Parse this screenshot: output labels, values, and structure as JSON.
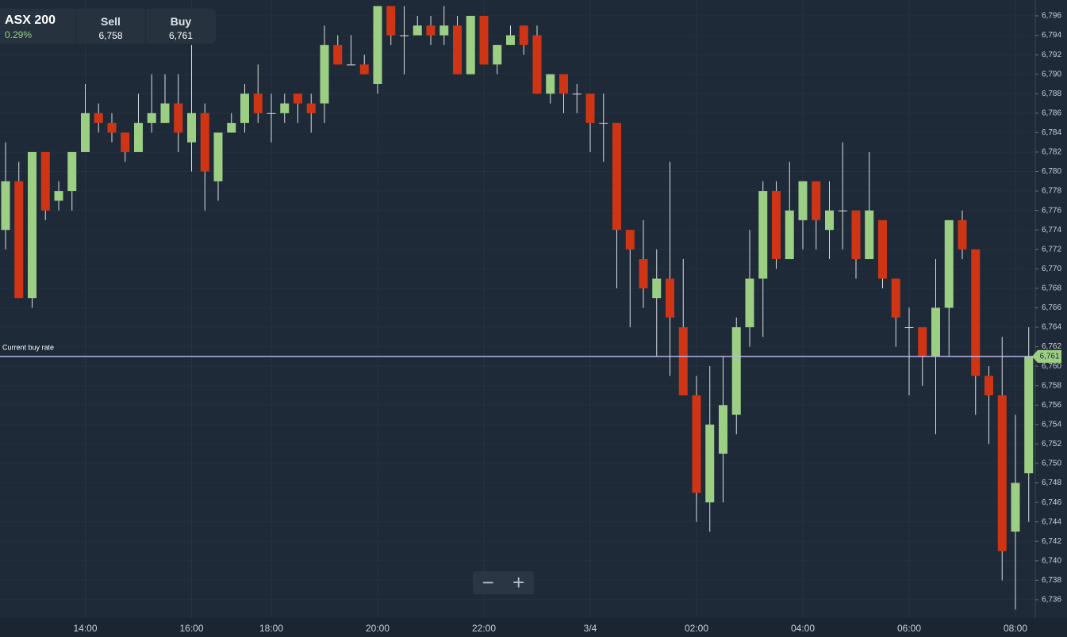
{
  "header": {
    "instrument": "ASX 200",
    "change": "0.29%",
    "sell_label": "Sell",
    "sell": "6,758",
    "buy_label": "Buy",
    "buy": "6,761"
  },
  "zoom": {
    "out": "−",
    "in": "+"
  },
  "chart_data": {
    "type": "candlestick",
    "categories": [
      null,
      null,
      null,
      null,
      null,
      null,
      "14:00",
      null,
      null,
      null,
      null,
      null,
      null,
      null,
      "16:00",
      null,
      null,
      null,
      null,
      null,
      "18:00",
      null,
      null,
      null,
      null,
      null,
      null,
      null,
      "20:00",
      null,
      null,
      null,
      null,
      null,
      null,
      null,
      "22:00",
      null,
      null,
      null,
      null,
      null,
      null,
      null,
      "3/4",
      null,
      null,
      null,
      null,
      null,
      null,
      null,
      "02:00",
      null,
      null,
      null,
      null,
      null,
      null,
      null,
      "04:00",
      null,
      null,
      null,
      null,
      null,
      null,
      null,
      "06:00",
      null,
      null,
      null,
      null,
      null,
      null,
      null,
      "08:00",
      null
    ],
    "open": [
      6774,
      6779,
      6767,
      6782,
      6777,
      6778,
      6782,
      6786,
      6785,
      6784,
      6782,
      6785,
      6785,
      6787,
      6783,
      6786,
      6779,
      6784,
      6785,
      6788,
      6786,
      6786,
      6788,
      6787,
      6787,
      6793,
      6791,
      6791,
      6789,
      6797,
      6794,
      6794,
      6795,
      6794,
      6795,
      6790,
      6796,
      6791,
      6793,
      6795,
      6794,
      6788,
      6790,
      6788,
      6788,
      6785,
      6785,
      6774,
      6771,
      6767,
      6769,
      6764,
      6757,
      6746,
      6751,
      6755,
      6764,
      6769,
      6778,
      6771,
      6775,
      6779,
      6774,
      6776,
      6776,
      6771,
      6775,
      6769,
      6764,
      6764,
      6761,
      6766,
      6775,
      6772,
      6759,
      6757,
      6743,
      6749
    ],
    "high": [
      6783,
      6781,
      6782,
      6782,
      6779,
      6782,
      6789,
      6787,
      6786,
      6784,
      6788,
      6790,
      6790,
      6790,
      6793,
      6787,
      6784,
      6786,
      6789,
      6791,
      6788,
      6788,
      6788,
      6788,
      6795,
      6794,
      6794,
      6792,
      6797,
      6797,
      6797,
      6796,
      6796,
      6797,
      6796,
      6796,
      6796,
      6793,
      6795,
      6795,
      6795,
      6790,
      6790,
      6789,
      6788,
      6788,
      6785,
      6774,
      6775,
      6772,
      6781,
      6771,
      6759,
      6760,
      6761,
      6765,
      6774,
      6779,
      6779,
      6781,
      6779,
      6779,
      6779,
      6783,
      6776,
      6782,
      6775,
      6769,
      6766,
      6764,
      6771,
      6775,
      6776,
      6772,
      6760,
      6763,
      6755,
      6764
    ],
    "low": [
      6772,
      6767,
      6766,
      6775,
      6776,
      6776,
      6782,
      6784,
      6783,
      6781,
      6782,
      6784,
      6785,
      6782,
      6780,
      6776,
      6777,
      6784,
      6784,
      6785,
      6783,
      6785,
      6785,
      6784,
      6785,
      6791,
      6791,
      6790,
      6788,
      6793,
      6790,
      6794,
      6793,
      6793,
      6790,
      6790,
      6791,
      6790,
      6793,
      6792,
      6788,
      6787,
      6786,
      6786,
      6782,
      6781,
      6768,
      6764,
      6766,
      6761,
      6759,
      6757,
      6744,
      6743,
      6746,
      6753,
      6762,
      6763,
      6770,
      6771,
      6772,
      6772,
      6771,
      6772,
      6769,
      6771,
      6768,
      6762,
      6757,
      6758,
      6753,
      6761,
      6771,
      6755,
      6752,
      6738,
      6735,
      6744
    ],
    "close": [
      6779,
      6767,
      6782,
      6776,
      6778,
      6782,
      6786,
      6785,
      6784,
      6782,
      6785,
      6786,
      6787,
      6784,
      6786,
      6780,
      6784,
      6785,
      6788,
      6786,
      6786,
      6787,
      6787,
      6786,
      6793,
      6791,
      6791,
      6790,
      6797,
      6794,
      6794,
      6795,
      6794,
      6795,
      6790,
      6796,
      6791,
      6793,
      6794,
      6793,
      6788,
      6790,
      6788,
      6788,
      6785,
      6785,
      6774,
      6772,
      6768,
      6769,
      6765,
      6757,
      6747,
      6754,
      6756,
      6764,
      6769,
      6778,
      6771,
      6776,
      6779,
      6775,
      6776,
      6776,
      6771,
      6776,
      6769,
      6765,
      6764,
      6761,
      6766,
      6775,
      6772,
      6759,
      6757,
      6741,
      6748,
      6761
    ],
    "up_color": "#9ccf84",
    "down_color": "#cf3514",
    "ylim": [
      6734,
      6798
    ],
    "yticks": [
      {
        "value": 6736,
        "label": "6,736"
      },
      {
        "value": 6738,
        "label": "6,738"
      },
      {
        "value": 6740,
        "label": "6,740"
      },
      {
        "value": 6742,
        "label": "6,742"
      },
      {
        "value": 6744,
        "label": "6,744"
      },
      {
        "value": 6746,
        "label": "6,746"
      },
      {
        "value": 6748,
        "label": "6,748"
      },
      {
        "value": 6750,
        "label": "6,750"
      },
      {
        "value": 6752,
        "label": "6,752"
      },
      {
        "value": 6754,
        "label": "6,754"
      },
      {
        "value": 6756,
        "label": "6,756"
      },
      {
        "value": 6758,
        "label": "6,758"
      },
      {
        "value": 6760,
        "label": "6,760"
      },
      {
        "value": 6762,
        "label": "6,762"
      },
      {
        "value": 6764,
        "label": "6,764"
      },
      {
        "value": 6766,
        "label": "6,766"
      },
      {
        "value": 6768,
        "label": "6,768"
      },
      {
        "value": 6770,
        "label": "6,770"
      },
      {
        "value": 6772,
        "label": "6,772"
      },
      {
        "value": 6774,
        "label": "6,774"
      },
      {
        "value": 6776,
        "label": "6,776"
      },
      {
        "value": 6778,
        "label": "6,778"
      },
      {
        "value": 6780,
        "label": "6,780"
      },
      {
        "value": 6782,
        "label": "6,782"
      },
      {
        "value": 6784,
        "label": "6,784"
      },
      {
        "value": 6786,
        "label": "6,786"
      },
      {
        "value": 6788,
        "label": "6,788"
      },
      {
        "value": 6790,
        "label": "6,790"
      },
      {
        "value": 6792,
        "label": "6,792"
      },
      {
        "value": 6794,
        "label": "6,794"
      },
      {
        "value": 6796,
        "label": "6,796"
      }
    ],
    "current_rate": {
      "label": "Current buy rate",
      "value": 6761,
      "value_label": "6,761",
      "color": "#b9b2e8"
    },
    "grid": true
  }
}
